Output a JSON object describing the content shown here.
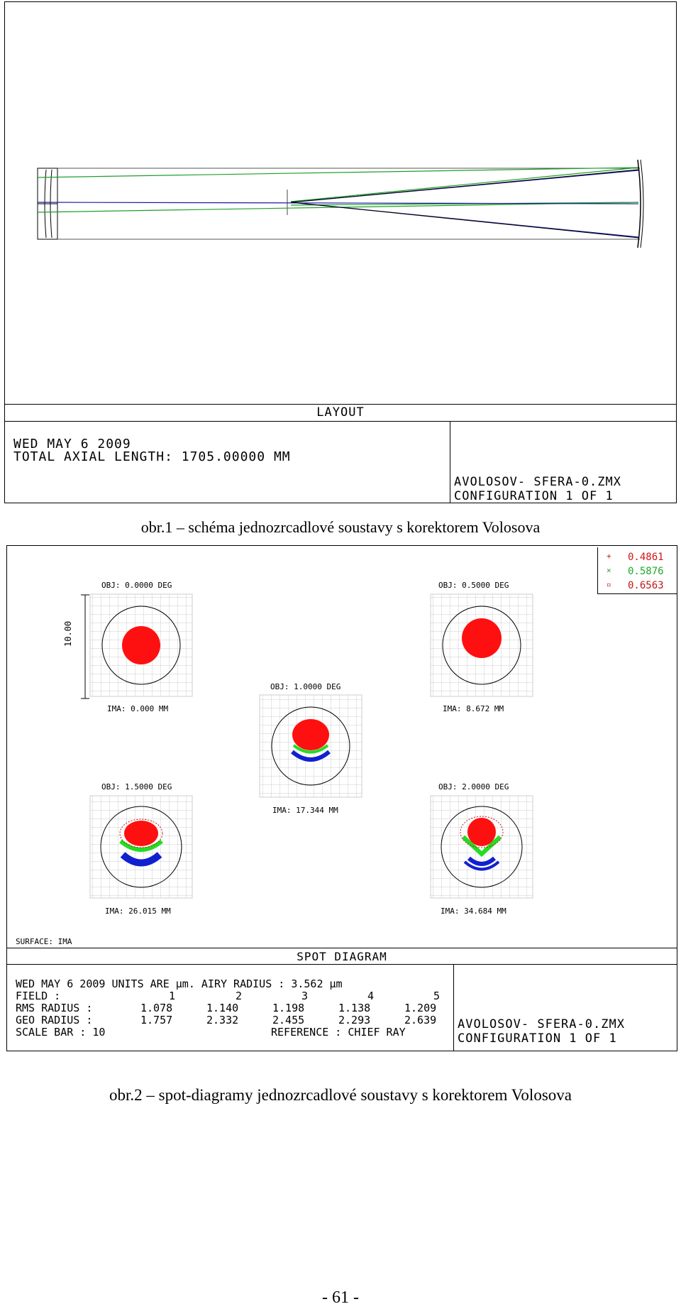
{
  "figure1": {
    "panel_title": "LAYOUT",
    "date": "WED MAY 6 2009",
    "axial_length": "TOTAL AXIAL LENGTH:  1705.00000 MM",
    "file": "AVOLOSOV- SFERA-0.ZMX",
    "config": "CONFIGURATION  1  OF  1",
    "ray_colors": {
      "green": "#1f9e2a",
      "blue": "#1a1aa0",
      "black": "#000000"
    }
  },
  "caption1": "obr.1 – schéma jednozrcadlové soustavy s korektorem Volosova",
  "figure2": {
    "legend": [
      {
        "symbol": "+",
        "value": "0.4861",
        "color": "#d21414"
      },
      {
        "symbol": "×",
        "value": "0.5876",
        "color": "#1fa82a"
      },
      {
        "symbol": "▫",
        "value": "0.6563",
        "color": "#c01818"
      }
    ],
    "fields": [
      {
        "obj": "OBJ: 0.0000 DEG",
        "ima": "IMA: 0.000 MM"
      },
      {
        "obj": "OBJ: 0.5000 DEG",
        "ima": "IMA: 8.672 MM"
      },
      {
        "obj": "OBJ: 1.0000 DEG",
        "ima": "IMA: 17.344 MM"
      },
      {
        "obj": "OBJ: 1.5000 DEG",
        "ima": "IMA: 26.015 MM"
      },
      {
        "obj": "OBJ: 2.0000 DEG",
        "ima": "IMA: 34.684 MM"
      }
    ],
    "scale_label": "10.00",
    "surface": "SURFACE: IMA",
    "panel_title": "SPOT DIAGRAM",
    "info_line": "WED MAY 6 2009   UNITS ARE µm.   AIRY RADIUS : 3.562 µm",
    "field_row": {
      "label": "FIELD      :",
      "values": [
        "1",
        "2",
        "3",
        "4",
        "5"
      ]
    },
    "rms_row": {
      "label": "RMS RADIUS :",
      "values": [
        "1.078",
        "1.140",
        "1.198",
        "1.138",
        "1.209"
      ]
    },
    "geo_row": {
      "label": "GEO RADIUS :",
      "values": [
        "1.757",
        "2.332",
        "2.455",
        "2.293",
        "2.639"
      ]
    },
    "scale_bar": "SCALE BAR  :     10",
    "reference": "REFERENCE   : CHIEF RAY",
    "file": "AVOLOSOV- SFERA-0.ZMX",
    "config": "CONFIGURATION  1  OF  1",
    "spot_colors": {
      "red": "#ff1010",
      "green": "#22dd22",
      "blue": "#1020d0"
    }
  },
  "caption2": "obr.2 – spot-diagramy jednozrcadlové soustavy s korektorem Volosova",
  "page_number": "- 61 -"
}
